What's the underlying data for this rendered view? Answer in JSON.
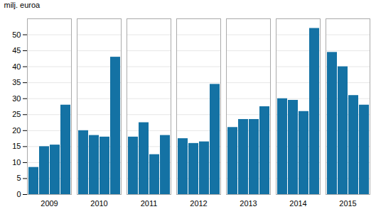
{
  "chart_data": {
    "type": "bar",
    "ylabel": "milj. euroa",
    "categories": [
      "2009",
      "2010",
      "2011",
      "2012",
      "2013",
      "2014",
      "2015"
    ],
    "color": "#1472a4",
    "series": [
      {
        "values": [
          8.5,
          20.0,
          18.0,
          17.5,
          21.0,
          30.0,
          44.5
        ]
      },
      {
        "values": [
          15.0,
          18.5,
          22.5,
          16.0,
          23.5,
          29.5,
          40.0
        ]
      },
      {
        "values": [
          15.5,
          18.0,
          12.5,
          16.5,
          23.5,
          26.0,
          31.0
        ]
      },
      {
        "values": [
          28.0,
          43.0,
          18.5,
          34.5,
          27.5,
          52.0,
          28.0
        ]
      }
    ],
    "ylim": [
      0,
      55
    ],
    "yticks": [
      0,
      5,
      10,
      15,
      20,
      25,
      30,
      35,
      40,
      45,
      50
    ],
    "grid": true
  }
}
